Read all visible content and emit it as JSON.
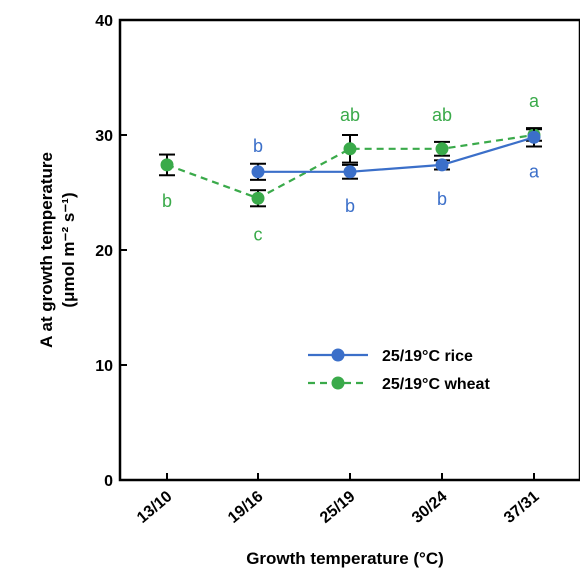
{
  "chart_data": {
    "type": "line",
    "categories": [
      "13/10",
      "19/16",
      "25/19",
      "30/24",
      "37/31"
    ],
    "xlabel": "Growth temperature (°C)",
    "ylabel_line1": "A at growth temperature",
    "ylabel_line2": "(μmol m⁻² s⁻¹)",
    "ylim": [
      0,
      40
    ],
    "yticks": [
      "0",
      "10",
      "20",
      "30",
      "40"
    ],
    "legend_position": "lower-right",
    "series": [
      {
        "name": "25/19°C rice",
        "color": "#3b6fc9",
        "line_style": "solid",
        "values": [
          null,
          26.8,
          26.8,
          27.4,
          29.8
        ],
        "errors": [
          null,
          0.7,
          0.6,
          0.4,
          0.8
        ],
        "letters": [
          null,
          "b",
          "b",
          "b",
          "a"
        ]
      },
      {
        "name": "25/19°C wheat",
        "color": "#3aaa4a",
        "line_style": "dashed",
        "values": [
          27.4,
          24.5,
          28.8,
          28.8,
          30.0
        ],
        "errors": [
          0.9,
          0.7,
          1.2,
          0.6,
          0.5
        ],
        "letters": [
          "b",
          "c",
          "ab",
          "ab",
          "a"
        ]
      }
    ]
  }
}
